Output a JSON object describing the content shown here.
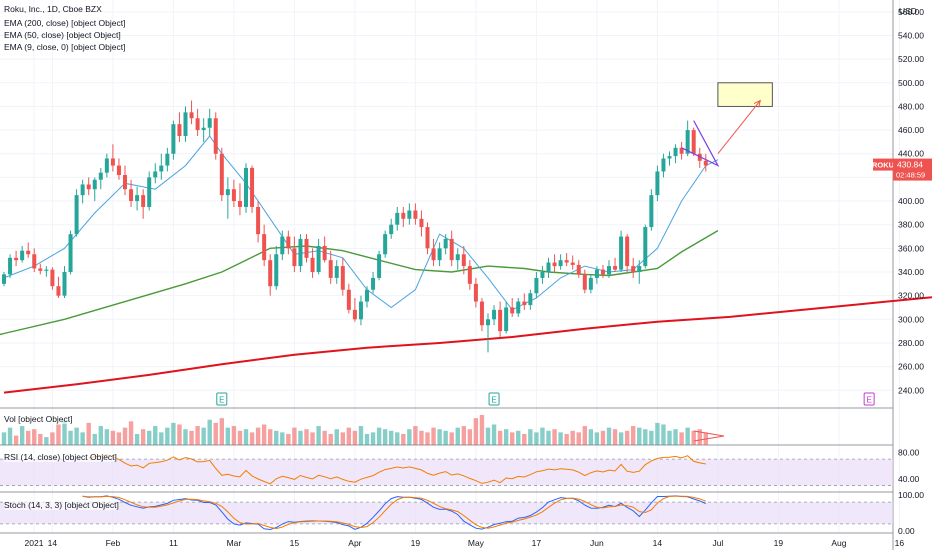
{
  "header": {
    "symbol_line": "Roku, Inc., 1D, Cboe BZX",
    "indicators": [
      "EMA (200, close) [object Object]",
      "EMA (50, close) [object Object]",
      "EMA (9, close, 0) [object Object]"
    ]
  },
  "panes": {
    "volume_label": "Vol [object Object]",
    "rsi_label": "RSI (14, close) [object Object]",
    "stoch_label": "Stoch (14, 3, 3) [object Object]"
  },
  "price_badge": {
    "ticker": "ROKU",
    "price": "430.84",
    "countdown": "02:48:59"
  },
  "colors": {
    "up": "#26a69a",
    "down": "#ef5350",
    "ema200": "#e0121b",
    "ema50": "#4a9a38",
    "ema9": "#4aa3df",
    "rsi": "#f57c00",
    "stoch_k": "#2962ff",
    "stoch_d": "#f57c00",
    "oscillator_band": "#e6d8f7",
    "wedge": "#7b3fe4",
    "target_box_fill": "#ffffcc",
    "target_box_border": "#555555",
    "arrow": "#ef5350",
    "earnings_past": "#26a69a",
    "earnings_future": "#c23ad1"
  },
  "chart_data": {
    "type": "candlestick",
    "title": "Roku, Inc., 1D, Cboe BZX",
    "currency": "USD",
    "ylim": [
      225,
      570
    ],
    "price_ticks": [
      240,
      260,
      280,
      300,
      320,
      340,
      360,
      380,
      400,
      420,
      440,
      460,
      480,
      500,
      520,
      540,
      560
    ],
    "x_tick_labels": [
      "2021",
      "14",
      "Feb",
      "11",
      "Mar",
      "15",
      "Apr",
      "19",
      "May",
      "17",
      "Jun",
      "14",
      "Jul",
      "19",
      "Aug",
      "16"
    ],
    "candles": [
      {
        "o": 330,
        "h": 340,
        "l": 328,
        "c": 338
      },
      {
        "o": 338,
        "h": 355,
        "l": 335,
        "c": 352
      },
      {
        "o": 352,
        "h": 358,
        "l": 345,
        "c": 350
      },
      {
        "o": 350,
        "h": 362,
        "l": 348,
        "c": 358
      },
      {
        "o": 358,
        "h": 365,
        "l": 352,
        "c": 355
      },
      {
        "o": 355,
        "h": 360,
        "l": 340,
        "c": 343
      },
      {
        "o": 343,
        "h": 347,
        "l": 338,
        "c": 341
      },
      {
        "o": 341,
        "h": 345,
        "l": 336,
        "c": 342
      },
      {
        "o": 342,
        "h": 344,
        "l": 325,
        "c": 328
      },
      {
        "o": 328,
        "h": 336,
        "l": 318,
        "c": 320
      },
      {
        "o": 320,
        "h": 345,
        "l": 318,
        "c": 340
      },
      {
        "o": 340,
        "h": 375,
        "l": 338,
        "c": 372
      },
      {
        "o": 372,
        "h": 410,
        "l": 370,
        "c": 405
      },
      {
        "o": 405,
        "h": 418,
        "l": 398,
        "c": 414
      },
      {
        "o": 414,
        "h": 420,
        "l": 405,
        "c": 410
      },
      {
        "o": 410,
        "h": 420,
        "l": 400,
        "c": 418
      },
      {
        "o": 418,
        "h": 428,
        "l": 410,
        "c": 424
      },
      {
        "o": 424,
        "h": 440,
        "l": 420,
        "c": 436
      },
      {
        "o": 436,
        "h": 448,
        "l": 425,
        "c": 430
      },
      {
        "o": 430,
        "h": 436,
        "l": 418,
        "c": 422
      },
      {
        "o": 422,
        "h": 430,
        "l": 405,
        "c": 410
      },
      {
        "o": 410,
        "h": 418,
        "l": 395,
        "c": 400
      },
      {
        "o": 400,
        "h": 412,
        "l": 392,
        "c": 405
      },
      {
        "o": 405,
        "h": 410,
        "l": 385,
        "c": 395
      },
      {
        "o": 395,
        "h": 425,
        "l": 392,
        "c": 420
      },
      {
        "o": 420,
        "h": 432,
        "l": 415,
        "c": 425
      },
      {
        "o": 425,
        "h": 440,
        "l": 418,
        "c": 430
      },
      {
        "o": 430,
        "h": 445,
        "l": 425,
        "c": 440
      },
      {
        "o": 440,
        "h": 468,
        "l": 435,
        "c": 465
      },
      {
        "o": 465,
        "h": 475,
        "l": 450,
        "c": 455
      },
      {
        "o": 455,
        "h": 480,
        "l": 450,
        "c": 475
      },
      {
        "o": 475,
        "h": 485,
        "l": 465,
        "c": 470
      },
      {
        "o": 470,
        "h": 478,
        "l": 455,
        "c": 460
      },
      {
        "o": 460,
        "h": 470,
        "l": 450,
        "c": 462
      },
      {
        "o": 462,
        "h": 478,
        "l": 455,
        "c": 470
      },
      {
        "o": 470,
        "h": 475,
        "l": 435,
        "c": 440
      },
      {
        "o": 440,
        "h": 445,
        "l": 400,
        "c": 405
      },
      {
        "o": 405,
        "h": 420,
        "l": 385,
        "c": 410
      },
      {
        "o": 410,
        "h": 418,
        "l": 395,
        "c": 400
      },
      {
        "o": 400,
        "h": 415,
        "l": 388,
        "c": 395
      },
      {
        "o": 395,
        "h": 432,
        "l": 390,
        "c": 428
      },
      {
        "o": 428,
        "h": 430,
        "l": 390,
        "c": 395
      },
      {
        "o": 395,
        "h": 400,
        "l": 365,
        "c": 372
      },
      {
        "o": 372,
        "h": 380,
        "l": 345,
        "c": 350
      },
      {
        "o": 350,
        "h": 355,
        "l": 320,
        "c": 328
      },
      {
        "o": 328,
        "h": 362,
        "l": 325,
        "c": 355
      },
      {
        "o": 355,
        "h": 375,
        "l": 350,
        "c": 370
      },
      {
        "o": 370,
        "h": 375,
        "l": 355,
        "c": 360
      },
      {
        "o": 360,
        "h": 370,
        "l": 340,
        "c": 345
      },
      {
        "o": 345,
        "h": 372,
        "l": 340,
        "c": 368
      },
      {
        "o": 368,
        "h": 372,
        "l": 348,
        "c": 352
      },
      {
        "o": 352,
        "h": 360,
        "l": 335,
        "c": 340
      },
      {
        "o": 340,
        "h": 368,
        "l": 338,
        "c": 362
      },
      {
        "o": 362,
        "h": 370,
        "l": 348,
        "c": 350
      },
      {
        "o": 350,
        "h": 358,
        "l": 330,
        "c": 335
      },
      {
        "o": 335,
        "h": 350,
        "l": 330,
        "c": 345
      },
      {
        "o": 345,
        "h": 352,
        "l": 320,
        "c": 325
      },
      {
        "o": 325,
        "h": 330,
        "l": 305,
        "c": 308
      },
      {
        "o": 308,
        "h": 318,
        "l": 298,
        "c": 300
      },
      {
        "o": 300,
        "h": 320,
        "l": 295,
        "c": 315
      },
      {
        "o": 315,
        "h": 328,
        "l": 310,
        "c": 325
      },
      {
        "o": 325,
        "h": 340,
        "l": 322,
        "c": 335
      },
      {
        "o": 335,
        "h": 358,
        "l": 333,
        "c": 355
      },
      {
        "o": 355,
        "h": 375,
        "l": 352,
        "c": 372
      },
      {
        "o": 372,
        "h": 385,
        "l": 368,
        "c": 380
      },
      {
        "o": 380,
        "h": 395,
        "l": 375,
        "c": 390
      },
      {
        "o": 390,
        "h": 395,
        "l": 378,
        "c": 385
      },
      {
        "o": 385,
        "h": 398,
        "l": 380,
        "c": 392
      },
      {
        "o": 392,
        "h": 398,
        "l": 380,
        "c": 385
      },
      {
        "o": 385,
        "h": 392,
        "l": 370,
        "c": 378
      },
      {
        "o": 378,
        "h": 382,
        "l": 355,
        "c": 360
      },
      {
        "o": 360,
        "h": 368,
        "l": 345,
        "c": 350
      },
      {
        "o": 350,
        "h": 365,
        "l": 345,
        "c": 360
      },
      {
        "o": 360,
        "h": 372,
        "l": 355,
        "c": 368
      },
      {
        "o": 368,
        "h": 375,
        "l": 345,
        "c": 350
      },
      {
        "o": 350,
        "h": 360,
        "l": 342,
        "c": 355
      },
      {
        "o": 355,
        "h": 362,
        "l": 338,
        "c": 345
      },
      {
        "o": 345,
        "h": 350,
        "l": 325,
        "c": 330
      },
      {
        "o": 330,
        "h": 335,
        "l": 310,
        "c": 315
      },
      {
        "o": 315,
        "h": 318,
        "l": 290,
        "c": 295
      },
      {
        "o": 295,
        "h": 305,
        "l": 272,
        "c": 300
      },
      {
        "o": 300,
        "h": 312,
        "l": 295,
        "c": 308
      },
      {
        "o": 308,
        "h": 315,
        "l": 285,
        "c": 290
      },
      {
        "o": 290,
        "h": 315,
        "l": 288,
        "c": 310
      },
      {
        "o": 310,
        "h": 318,
        "l": 302,
        "c": 305
      },
      {
        "o": 305,
        "h": 318,
        "l": 302,
        "c": 315
      },
      {
        "o": 315,
        "h": 322,
        "l": 308,
        "c": 312
      },
      {
        "o": 312,
        "h": 325,
        "l": 308,
        "c": 322
      },
      {
        "o": 322,
        "h": 340,
        "l": 318,
        "c": 335
      },
      {
        "o": 335,
        "h": 345,
        "l": 330,
        "c": 340
      },
      {
        "o": 340,
        "h": 352,
        "l": 335,
        "c": 348
      },
      {
        "o": 348,
        "h": 355,
        "l": 340,
        "c": 345
      },
      {
        "o": 345,
        "h": 355,
        "l": 342,
        "c": 350
      },
      {
        "o": 350,
        "h": 356,
        "l": 345,
        "c": 348
      },
      {
        "o": 348,
        "h": 354,
        "l": 342,
        "c": 346
      },
      {
        "o": 346,
        "h": 350,
        "l": 335,
        "c": 338
      },
      {
        "o": 338,
        "h": 342,
        "l": 322,
        "c": 325
      },
      {
        "o": 325,
        "h": 338,
        "l": 322,
        "c": 335
      },
      {
        "o": 335,
        "h": 345,
        "l": 330,
        "c": 342
      },
      {
        "o": 342,
        "h": 346,
        "l": 335,
        "c": 338
      },
      {
        "o": 338,
        "h": 350,
        "l": 335,
        "c": 345
      },
      {
        "o": 345,
        "h": 352,
        "l": 340,
        "c": 342
      },
      {
        "o": 342,
        "h": 375,
        "l": 340,
        "c": 370
      },
      {
        "o": 370,
        "h": 372,
        "l": 340,
        "c": 345
      },
      {
        "o": 345,
        "h": 352,
        "l": 335,
        "c": 340
      },
      {
        "o": 340,
        "h": 350,
        "l": 330,
        "c": 345
      },
      {
        "o": 345,
        "h": 380,
        "l": 343,
        "c": 378
      },
      {
        "o": 378,
        "h": 410,
        "l": 375,
        "c": 405
      },
      {
        "o": 405,
        "h": 430,
        "l": 400,
        "c": 425
      },
      {
        "o": 425,
        "h": 440,
        "l": 420,
        "c": 436
      },
      {
        "o": 436,
        "h": 442,
        "l": 430,
        "c": 438
      },
      {
        "o": 438,
        "h": 448,
        "l": 432,
        "c": 445
      },
      {
        "o": 445,
        "h": 450,
        "l": 435,
        "c": 440
      },
      {
        "o": 440,
        "h": 468,
        "l": 438,
        "c": 460
      },
      {
        "o": 460,
        "h": 462,
        "l": 438,
        "c": 440
      },
      {
        "o": 440,
        "h": 445,
        "l": 428,
        "c": 434
      },
      {
        "o": 434,
        "h": 440,
        "l": 425,
        "c": 430
      }
    ],
    "ema200": [
      [
        0,
        238
      ],
      [
        12,
        245
      ],
      [
        24,
        253
      ],
      [
        36,
        262
      ],
      [
        48,
        270
      ],
      [
        60,
        276
      ],
      [
        72,
        280
      ],
      [
        84,
        285
      ],
      [
        96,
        292
      ],
      [
        108,
        298
      ],
      [
        120,
        302
      ],
      [
        140,
        312
      ],
      [
        160,
        322
      ]
    ],
    "ema50": [
      [
        -25,
        262
      ],
      [
        -10,
        275
      ],
      [
        0,
        288
      ],
      [
        10,
        300
      ],
      [
        20,
        315
      ],
      [
        30,
        330
      ],
      [
        36,
        340
      ],
      [
        40,
        350
      ],
      [
        44,
        360
      ],
      [
        50,
        362
      ],
      [
        56,
        358
      ],
      [
        62,
        350
      ],
      [
        68,
        342
      ],
      [
        74,
        340
      ],
      [
        80,
        345
      ],
      [
        86,
        343
      ],
      [
        90,
        340
      ],
      [
        96,
        338
      ],
      [
        100,
        337
      ],
      [
        104,
        340
      ],
      [
        108,
        343
      ],
      [
        112,
        357
      ],
      [
        118,
        375
      ]
    ],
    "ema9": [
      [
        0,
        335
      ],
      [
        5,
        345
      ],
      [
        10,
        360
      ],
      [
        15,
        390
      ],
      [
        20,
        415
      ],
      [
        25,
        410
      ],
      [
        30,
        430
      ],
      [
        34,
        455
      ],
      [
        36,
        440
      ],
      [
        40,
        415
      ],
      [
        44,
        385
      ],
      [
        48,
        355
      ],
      [
        52,
        358
      ],
      [
        56,
        352
      ],
      [
        60,
        325
      ],
      [
        64,
        310
      ],
      [
        68,
        325
      ],
      [
        72,
        372
      ],
      [
        76,
        360
      ],
      [
        80,
        335
      ],
      [
        84,
        308
      ],
      [
        88,
        318
      ],
      [
        92,
        335
      ],
      [
        96,
        345
      ],
      [
        100,
        340
      ],
      [
        104,
        342
      ],
      [
        108,
        360
      ],
      [
        112,
        400
      ],
      [
        116,
        430
      ],
      [
        118,
        435
      ]
    ],
    "earnings_markers": [
      {
        "label": "E",
        "i": 36
      },
      {
        "label": "E",
        "i": 81
      },
      {
        "label": "E",
        "i": 143
      }
    ],
    "target_zone": {
      "i_from": 118,
      "i_to": 127,
      "price_from": 480,
      "price_to": 500
    },
    "arrow": {
      "from": {
        "i": 118,
        "p": 440
      },
      "to": {
        "i": 125,
        "p": 485
      }
    },
    "wedge": [
      {
        "i": 114,
        "p": 468
      },
      {
        "i": 118,
        "p": 430
      },
      {
        "i": 112,
        "p": 445
      }
    ],
    "volume": [
      40,
      55,
      30,
      60,
      45,
      50,
      35,
      25,
      40,
      65,
      80,
      45,
      55,
      40,
      70,
      35,
      60,
      50,
      45,
      40,
      55,
      75,
      35,
      50,
      45,
      60,
      40,
      55,
      70,
      65,
      50,
      45,
      60,
      55,
      80,
      70,
      85,
      55,
      60,
      45,
      50,
      40,
      55,
      65,
      50,
      45,
      40,
      35,
      55,
      45,
      50,
      40,
      60,
      45,
      35,
      50,
      40,
      55,
      45,
      60,
      35,
      40,
      55,
      50,
      45,
      40,
      35,
      50,
      60,
      45,
      40,
      55,
      50,
      45,
      40,
      55,
      60,
      50,
      85,
      95,
      55,
      65,
      45,
      50,
      40,
      45,
      35,
      50,
      40,
      55,
      45,
      50,
      40,
      35,
      45,
      40,
      60,
      50,
      40,
      45,
      55,
      50,
      40,
      45,
      60,
      55,
      50,
      45,
      70,
      65,
      45,
      50,
      40,
      55,
      45,
      50,
      40
    ],
    "rsi_ticks": [
      40,
      80
    ],
    "stoch_ticks": [
      0,
      100
    ],
    "rsi_levels": [
      30,
      70
    ],
    "stoch_levels": [
      20,
      80
    ]
  }
}
